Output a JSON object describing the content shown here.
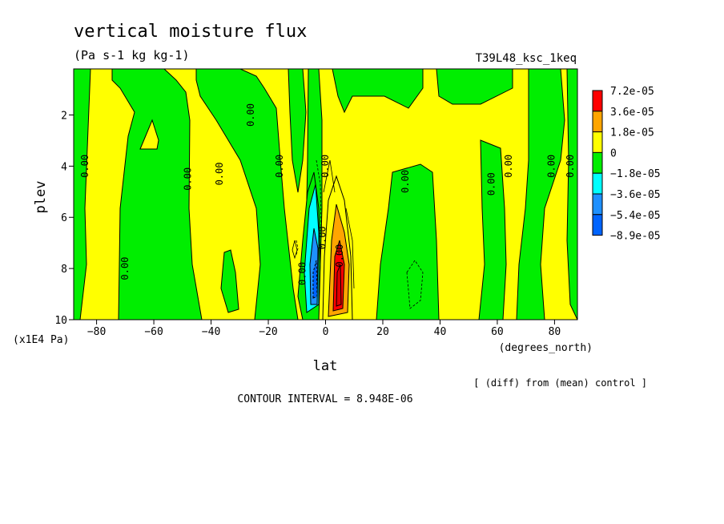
{
  "chart_data": {
    "type": "heatmap",
    "title": "vertical moisture flux",
    "units": "(Pa s-1 kg kg-1)",
    "run_label": "T39L48_ksc_1keq",
    "xlabel": "lat",
    "x_units": "(degrees_north)",
    "ylabel": "plev",
    "y_units": "(x1E4 Pa)",
    "xlim": [
      -88,
      88
    ],
    "ylim": [
      10,
      0.2
    ],
    "y_inverted": true,
    "x_ticks": [
      -80,
      -60,
      -40,
      -20,
      0,
      20,
      40,
      60,
      80
    ],
    "x_tick_labels": [
      "−80",
      "−60",
      "−40",
      "−20",
      "0",
      "20",
      "40",
      "60",
      "80"
    ],
    "y_ticks": [
      2,
      4,
      6,
      8,
      10
    ],
    "y_tick_labels": [
      "2",
      "4",
      "6",
      "8",
      "10"
    ],
    "legend": {
      "position": "right",
      "labels": [
        "7.2e-05",
        "3.6e-05",
        "1.8e-05",
        "0",
        "−1.8e-05",
        "−3.6e-05",
        "−5.4e-05",
        "−8.9e-05"
      ],
      "colors": [
        "#ff0000",
        "#ffa500",
        "#ffff00",
        "#00ee00",
        "#00ffff",
        "#1e90ff",
        "#0064ff"
      ]
    },
    "contour_interval_text": "CONTOUR INTERVAL = 8.948E-06",
    "note": "[ (diff) from (mean) control ]",
    "contour_label": "0.00",
    "contour_label_positions": [
      [
        -83,
        4.0
      ],
      [
        -69,
        8.0
      ],
      [
        -47,
        4.5
      ],
      [
        -36,
        4.3
      ],
      [
        -25,
        2.0
      ],
      [
        -15,
        4.0
      ],
      [
        -7,
        8.2
      ],
      [
        1,
        4.0
      ],
      [
        0,
        6.8
      ],
      [
        6,
        7.5
      ],
      [
        29,
        4.6
      ],
      [
        59,
        4.7
      ],
      [
        65,
        4.0
      ],
      [
        80,
        4.0
      ],
      [
        88,
        4.0
      ]
    ],
    "positive_core_lat": 5,
    "positive_core_plev": 8.3,
    "negative_core_lat": -2,
    "negative_core_plev": 7.3
  }
}
